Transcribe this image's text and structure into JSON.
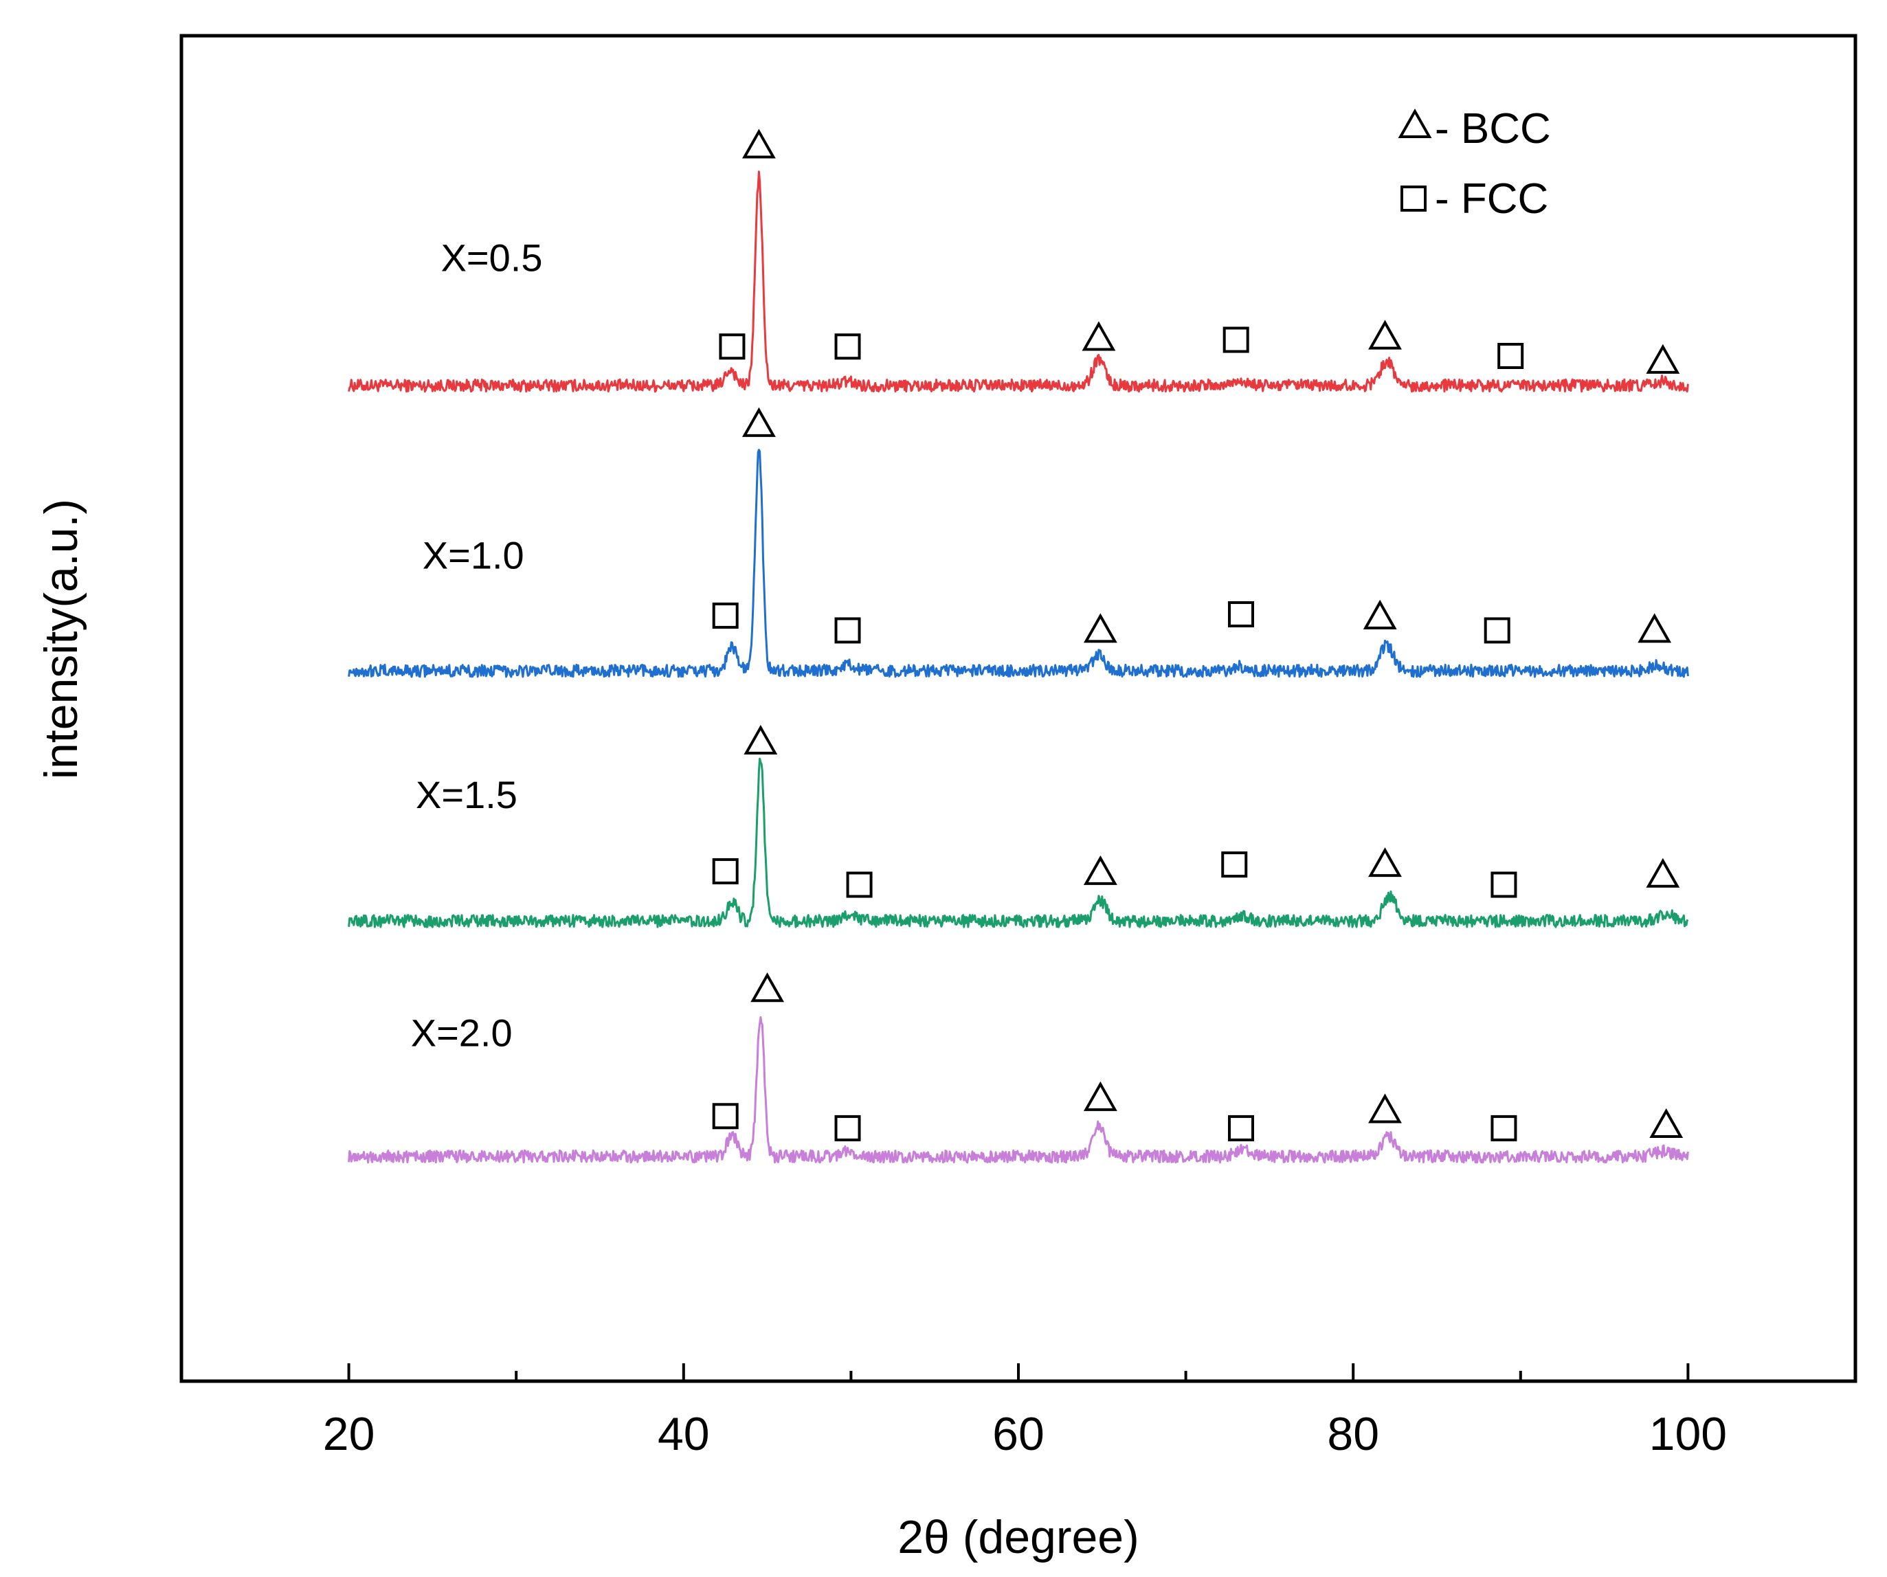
{
  "chart_data": {
    "type": "line",
    "title": "",
    "xlabel": "2θ (degree)",
    "ylabel": "intensity(a.u.)",
    "xlim": [
      10,
      110
    ],
    "ylim": [
      0,
      100
    ],
    "x_ticks": [
      20,
      40,
      60,
      80,
      100
    ],
    "x_minor_ticks": [
      30,
      50,
      70,
      90
    ],
    "grid": false,
    "legend": {
      "placement": "top-right",
      "entries": [
        {
          "symbol": "triangle",
          "label": "- BCC"
        },
        {
          "symbol": "square",
          "label": "- FCC"
        }
      ]
    },
    "series": [
      {
        "name": "X=0.5",
        "color": "#e8393f",
        "baseline": 74.0,
        "noise": 0.45,
        "peaks": [
          {
            "x": 42.8,
            "h": 1.2,
            "w": 0.3
          },
          {
            "x": 44.5,
            "h": 15.5,
            "w": 0.22
          },
          {
            "x": 49.8,
            "h": 0.3,
            "w": 0.4
          },
          {
            "x": 64.8,
            "h": 2.0,
            "w": 0.35
          },
          {
            "x": 73.2,
            "h": 0.4,
            "w": 0.4
          },
          {
            "x": 82.0,
            "h": 1.8,
            "w": 0.4
          },
          {
            "x": 98.5,
            "h": 0.3,
            "w": 0.4
          }
        ],
        "bcc_markers": [
          {
            "x": 44.5,
            "y": 91.8
          },
          {
            "x": 64.8,
            "y": 77.5
          },
          {
            "x": 81.9,
            "y": 77.6
          },
          {
            "x": 98.5,
            "y": 75.8
          }
        ],
        "fcc_markers": [
          {
            "x": 42.9,
            "y": 76.9
          },
          {
            "x": 49.8,
            "y": 76.9
          },
          {
            "x": 73.0,
            "y": 77.4
          },
          {
            "x": 89.4,
            "y": 76.2
          }
        ]
      },
      {
        "name": "X=1.0",
        "color": "#1f6fd1",
        "baseline": 52.8,
        "noise": 0.45,
        "peaks": [
          {
            "x": 42.9,
            "h": 1.8,
            "w": 0.3
          },
          {
            "x": 44.5,
            "h": 16.5,
            "w": 0.22
          },
          {
            "x": 49.8,
            "h": 0.4,
            "w": 0.4
          },
          {
            "x": 64.8,
            "h": 1.2,
            "w": 0.35
          },
          {
            "x": 73.2,
            "h": 0.3,
            "w": 0.4
          },
          {
            "x": 82.0,
            "h": 1.9,
            "w": 0.4
          },
          {
            "x": 98.2,
            "h": 0.4,
            "w": 0.5
          }
        ],
        "bcc_markers": [
          {
            "x": 44.5,
            "y": 71.1
          },
          {
            "x": 64.9,
            "y": 55.8
          },
          {
            "x": 81.6,
            "y": 56.8
          },
          {
            "x": 98.0,
            "y": 55.8
          }
        ],
        "fcc_markers": [
          {
            "x": 42.5,
            "y": 56.9
          },
          {
            "x": 49.8,
            "y": 55.8
          },
          {
            "x": 73.3,
            "y": 57.0
          },
          {
            "x": 88.6,
            "y": 55.8
          }
        ]
      },
      {
        "name": "X=1.5",
        "color": "#1a9e6b",
        "baseline": 34.2,
        "noise": 0.45,
        "peaks": [
          {
            "x": 42.9,
            "h": 1.5,
            "w": 0.3
          },
          {
            "x": 44.6,
            "h": 12.0,
            "w": 0.22
          },
          {
            "x": 50.0,
            "h": 0.5,
            "w": 0.4
          },
          {
            "x": 64.9,
            "h": 1.5,
            "w": 0.35
          },
          {
            "x": 73.3,
            "h": 0.4,
            "w": 0.4
          },
          {
            "x": 82.2,
            "h": 1.8,
            "w": 0.4
          },
          {
            "x": 98.7,
            "h": 0.5,
            "w": 0.5
          }
        ],
        "bcc_markers": [
          {
            "x": 44.6,
            "y": 47.5
          },
          {
            "x": 64.9,
            "y": 37.8
          },
          {
            "x": 81.9,
            "y": 38.4
          },
          {
            "x": 98.5,
            "y": 37.6
          }
        ],
        "fcc_markers": [
          {
            "x": 42.5,
            "y": 37.9
          },
          {
            "x": 50.5,
            "y": 36.9
          },
          {
            "x": 72.9,
            "y": 38.4
          },
          {
            "x": 89.0,
            "y": 36.9
          }
        ]
      },
      {
        "name": "X=2.0",
        "color": "#c77fd9",
        "baseline": 16.7,
        "noise": 0.45,
        "peaks": [
          {
            "x": 42.9,
            "h": 1.6,
            "w": 0.3
          },
          {
            "x": 44.6,
            "h": 10.5,
            "w": 0.22
          },
          {
            "x": 49.8,
            "h": 0.4,
            "w": 0.4
          },
          {
            "x": 64.8,
            "h": 2.4,
            "w": 0.35
          },
          {
            "x": 73.4,
            "h": 0.6,
            "w": 0.4
          },
          {
            "x": 82.1,
            "h": 1.5,
            "w": 0.4
          },
          {
            "x": 98.5,
            "h": 0.4,
            "w": 0.5
          }
        ],
        "bcc_markers": [
          {
            "x": 45.0,
            "y": 29.1
          },
          {
            "x": 64.9,
            "y": 21.0
          },
          {
            "x": 81.9,
            "y": 20.1
          },
          {
            "x": 98.7,
            "y": 19.0
          }
        ],
        "fcc_markers": [
          {
            "x": 42.5,
            "y": 19.7
          },
          {
            "x": 49.8,
            "y": 18.8
          },
          {
            "x": 73.3,
            "y": 18.8
          },
          {
            "x": 89.0,
            "y": 18.8
          }
        ]
      }
    ],
    "series_label_positions": [
      {
        "x": 25.5,
        "y": 82.5
      },
      {
        "x": 24.4,
        "y": 60.4
      },
      {
        "x": 24.0,
        "y": 42.6
      },
      {
        "x": 23.7,
        "y": 24.9
      }
    ]
  }
}
